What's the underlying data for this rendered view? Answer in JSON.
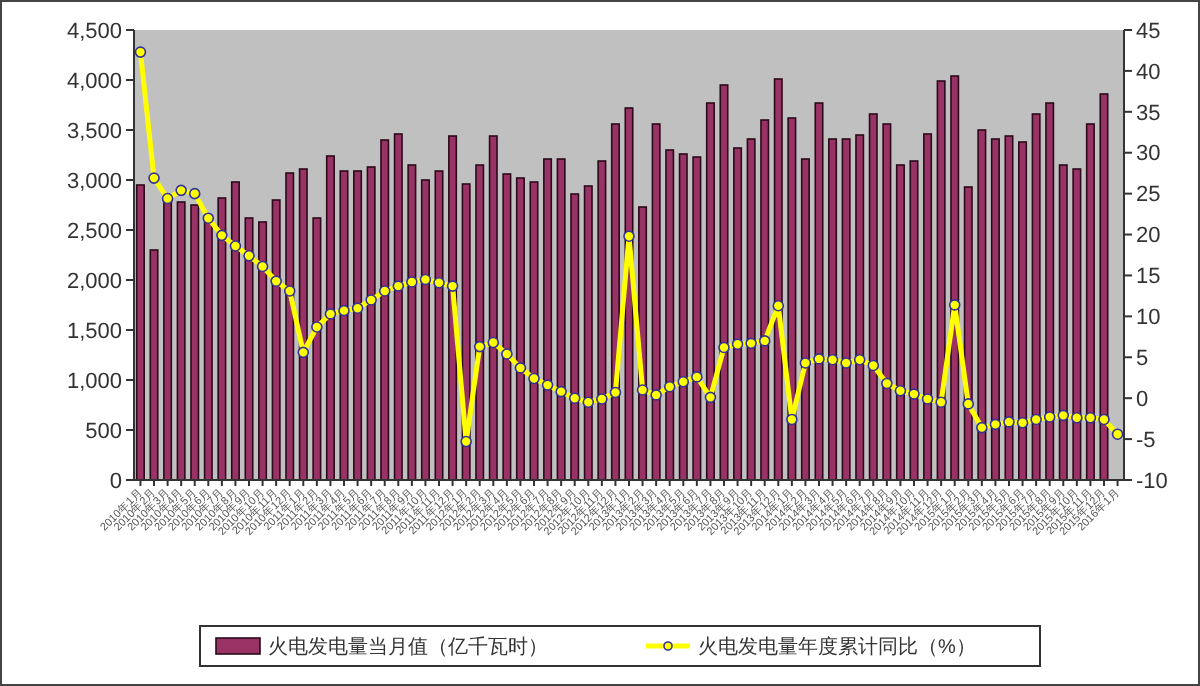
{
  "chart_data": {
    "type": "bar",
    "categories": [
      "2010年1月",
      "2010年2月",
      "2010年3月",
      "2010年4月",
      "2010年5月",
      "2010年6月",
      "2010年7月",
      "2010年8月",
      "2010年9月",
      "2010年10月",
      "2010年11月",
      "2010年12月",
      "2011年1月",
      "2011年2月",
      "2011年3月",
      "2011年4月",
      "2011年5月",
      "2011年6月",
      "2011年7月",
      "2011年8月",
      "2011年9月",
      "2011年10月",
      "2011年11月",
      "2011年12月",
      "2012年1月",
      "2012年2月",
      "2012年3月",
      "2012年4月",
      "2012年5月",
      "2012年6月",
      "2012年7月",
      "2012年8月",
      "2012年9月",
      "2012年10月",
      "2012年11月",
      "2012年12月",
      "2013年1月",
      "2013年2月",
      "2013年3月",
      "2013年4月",
      "2013年5月",
      "2013年6月",
      "2013年7月",
      "2013年8月",
      "2013年9月",
      "2013年10月",
      "2013年11月",
      "2013年12月",
      "2014年1月",
      "2014年2月",
      "2014年3月",
      "2014年4月",
      "2014年5月",
      "2014年6月",
      "2014年7月",
      "2014年8月",
      "2014年9月",
      "2014年10月",
      "2014年11月",
      "2014年12月",
      "2015年1月",
      "2015年2月",
      "2015年3月",
      "2015年4月",
      "2015年5月",
      "2015年6月",
      "2015年7月",
      "2015年8月",
      "2015年9月",
      "2015年10月",
      "2015年11月",
      "2015年12月",
      "2016年1月"
    ],
    "series": [
      {
        "name": "火电发电量当月值（亿千瓦时）",
        "color": "#993366",
        "values": [
          2950,
          2300,
          2800,
          2780,
          2750,
          2620,
          2820,
          2980,
          2620,
          2580,
          2800,
          3070,
          3110,
          2620,
          3240,
          3090,
          3090,
          3130,
          3400,
          3460,
          3150,
          3000,
          3090,
          3440,
          2960,
          3150,
          3440,
          3060,
          3020,
          2980,
          3210,
          3210,
          2860,
          2940,
          3190,
          3560,
          3720,
          2730,
          3560,
          3300,
          3260,
          3230,
          3770,
          3950,
          3320,
          3410,
          3600,
          4010,
          3620,
          3210,
          3770,
          3410,
          3410,
          3450,
          3660,
          3560,
          3150,
          3190,
          3460,
          3990,
          4040,
          2930,
          3500,
          3410,
          3440,
          3380,
          3660,
          3770,
          3150,
          3110,
          3560,
          3860,
          null
        ]
      },
      {
        "type": "line",
        "axis": "y2",
        "name": "火电发电量年度累计同比（%）",
        "color": "#ffff00",
        "marker": "circle",
        "values": [
          42.3,
          26.9,
          24.4,
          25.4,
          25.0,
          22.0,
          19.9,
          18.6,
          17.4,
          16.1,
          14.3,
          13.1,
          5.6,
          8.7,
          10.3,
          10.7,
          11.0,
          12.0,
          13.1,
          13.7,
          14.2,
          14.5,
          14.1,
          13.7,
          -5.3,
          6.3,
          6.8,
          5.4,
          3.7,
          2.4,
          1.6,
          0.8,
          0.0,
          -0.5,
          -0.1,
          0.7,
          19.8,
          1.0,
          0.4,
          1.4,
          2.0,
          2.6,
          0.1,
          6.2,
          6.6,
          6.7,
          7.0,
          11.3,
          -2.6,
          4.3,
          4.8,
          4.7,
          4.3,
          4.7,
          4.0,
          1.8,
          0.9,
          0.5,
          -0.1,
          -0.5,
          11.4,
          -0.7,
          -3.6,
          -3.2,
          -2.9,
          -3.0,
          -2.6,
          -2.3,
          -2.1,
          -2.4,
          -2.4,
          -2.6,
          -4.4
        ]
      }
    ],
    "ylim": [
      0,
      4500
    ],
    "yticks": [
      {
        "value": 0,
        "label": "0"
      },
      {
        "value": 500,
        "label": "500"
      },
      {
        "value": 1000,
        "label": "1,000"
      },
      {
        "value": 1500,
        "label": "1,500"
      },
      {
        "value": 2000,
        "label": "2,000"
      },
      {
        "value": 2500,
        "label": "2,500"
      },
      {
        "value": 3000,
        "label": "3,000"
      },
      {
        "value": 3500,
        "label": "3,500"
      },
      {
        "value": 4000,
        "label": "4,000"
      },
      {
        "value": 4500,
        "label": "4,500"
      }
    ],
    "y2lim": [
      -10,
      45
    ],
    "y2ticks": [
      -10,
      -5,
      0,
      5,
      10,
      15,
      20,
      25,
      30,
      35,
      40,
      45
    ],
    "grid": false,
    "legend": "bottom"
  }
}
